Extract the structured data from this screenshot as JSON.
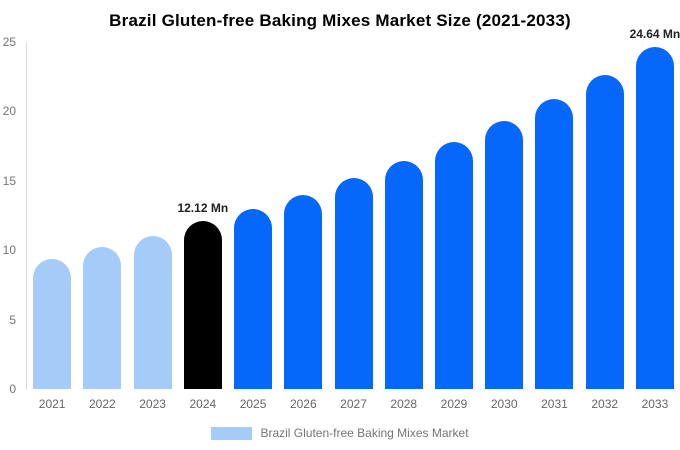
{
  "title": "Brazil Gluten-free Baking Mixes Market Size (2021-2033)",
  "legend": {
    "label": "Brazil Gluten-free Baking Mixes Market",
    "swatch_color": "#a5cbf8"
  },
  "colors": {
    "historical_bar": "#a5cbf8",
    "base_year_bar": "#000000",
    "forecast_bar": "#0568fb",
    "axis_line": "#d9d9d9",
    "tick_label": "#757575",
    "data_label": "#222222"
  },
  "chart_data": {
    "type": "bar",
    "title": "Brazil Gluten-free Baking Mixes Market Size (2021-2033)",
    "categories": [
      "2021",
      "2022",
      "2023",
      "2024",
      "2025",
      "2026",
      "2027",
      "2028",
      "2029",
      "2030",
      "2031",
      "2032",
      "2033"
    ],
    "values": [
      9.4,
      10.2,
      11.0,
      12.12,
      13.0,
      14.0,
      15.2,
      16.4,
      17.8,
      19.3,
      20.9,
      22.6,
      24.64
    ],
    "bar_roles": [
      "historical",
      "historical",
      "historical",
      "base_year",
      "forecast",
      "forecast",
      "forecast",
      "forecast",
      "forecast",
      "forecast",
      "forecast",
      "forecast",
      "forecast"
    ],
    "data_labels": {
      "2024": "12.12 Mn",
      "2033": "24.64 Mn"
    },
    "xlabel": "",
    "ylabel": "",
    "ylim": [
      0,
      25
    ],
    "yticks": [
      0,
      5,
      10,
      15,
      20,
      25
    ],
    "grid": false,
    "legend_position": "bottom",
    "legend_entries": [
      "Brazil Gluten-free Baking Mixes Market"
    ]
  }
}
